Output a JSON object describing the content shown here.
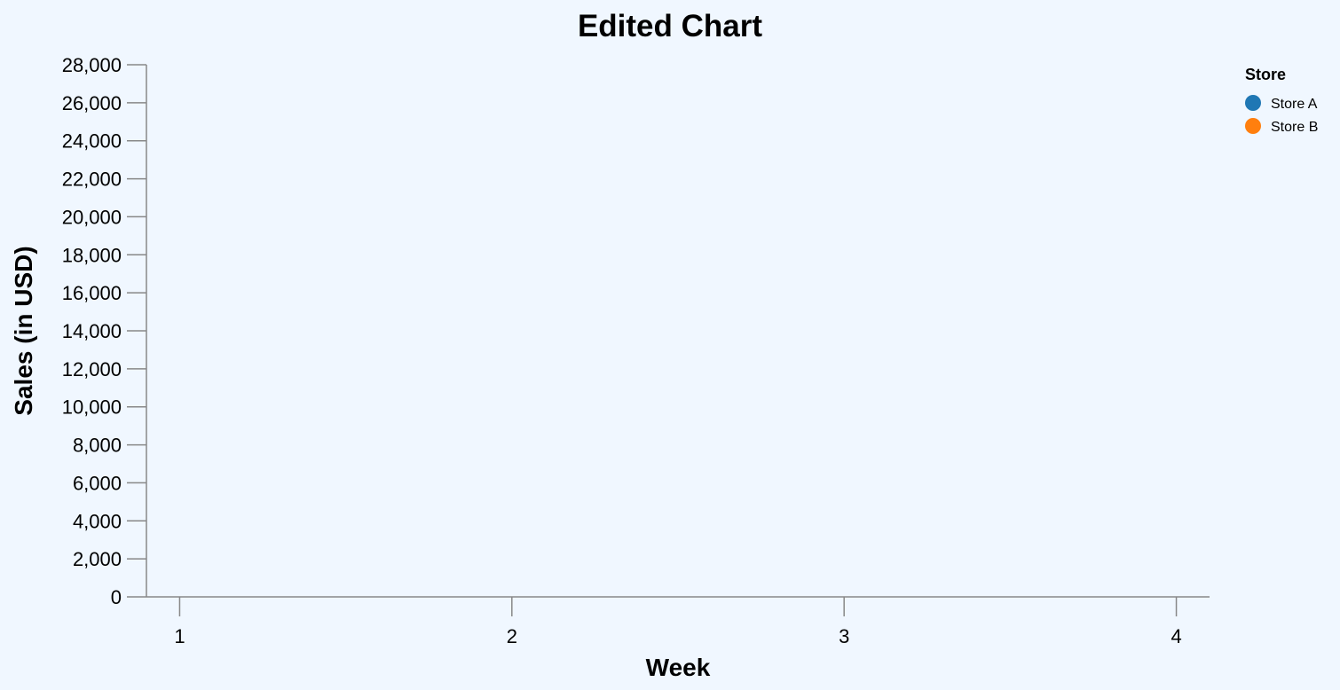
{
  "chart_data": {
    "type": "scatter",
    "title": "Edited Chart",
    "xlabel": "Week",
    "ylabel": "Sales (in USD)",
    "x_ticks": [
      "1",
      "2",
      "3",
      "4"
    ],
    "x_domain": [
      0.9,
      4.1
    ],
    "ylim": [
      0,
      28000
    ],
    "y_ticks": [
      "0",
      "2,000",
      "4,000",
      "6,000",
      "8,000",
      "10,000",
      "12,000",
      "14,000",
      "16,000",
      "18,000",
      "20,000",
      "22,000",
      "24,000",
      "26,000",
      "28,000"
    ],
    "y_tick_values": [
      0,
      2000,
      4000,
      6000,
      8000,
      10000,
      12000,
      14000,
      16000,
      18000,
      20000,
      22000,
      24000,
      26000,
      28000
    ],
    "x_tick_values": [
      1,
      2,
      3,
      4
    ],
    "grid": false,
    "legend": {
      "title": "Store",
      "placement": "top-right",
      "items": [
        {
          "label": "Store A",
          "color": "#1f77b4"
        },
        {
          "label": "Store B",
          "color": "#ff7f0e"
        }
      ]
    },
    "series": [
      {
        "name": "Store A",
        "values": []
      },
      {
        "name": "Store B",
        "values": []
      }
    ]
  }
}
